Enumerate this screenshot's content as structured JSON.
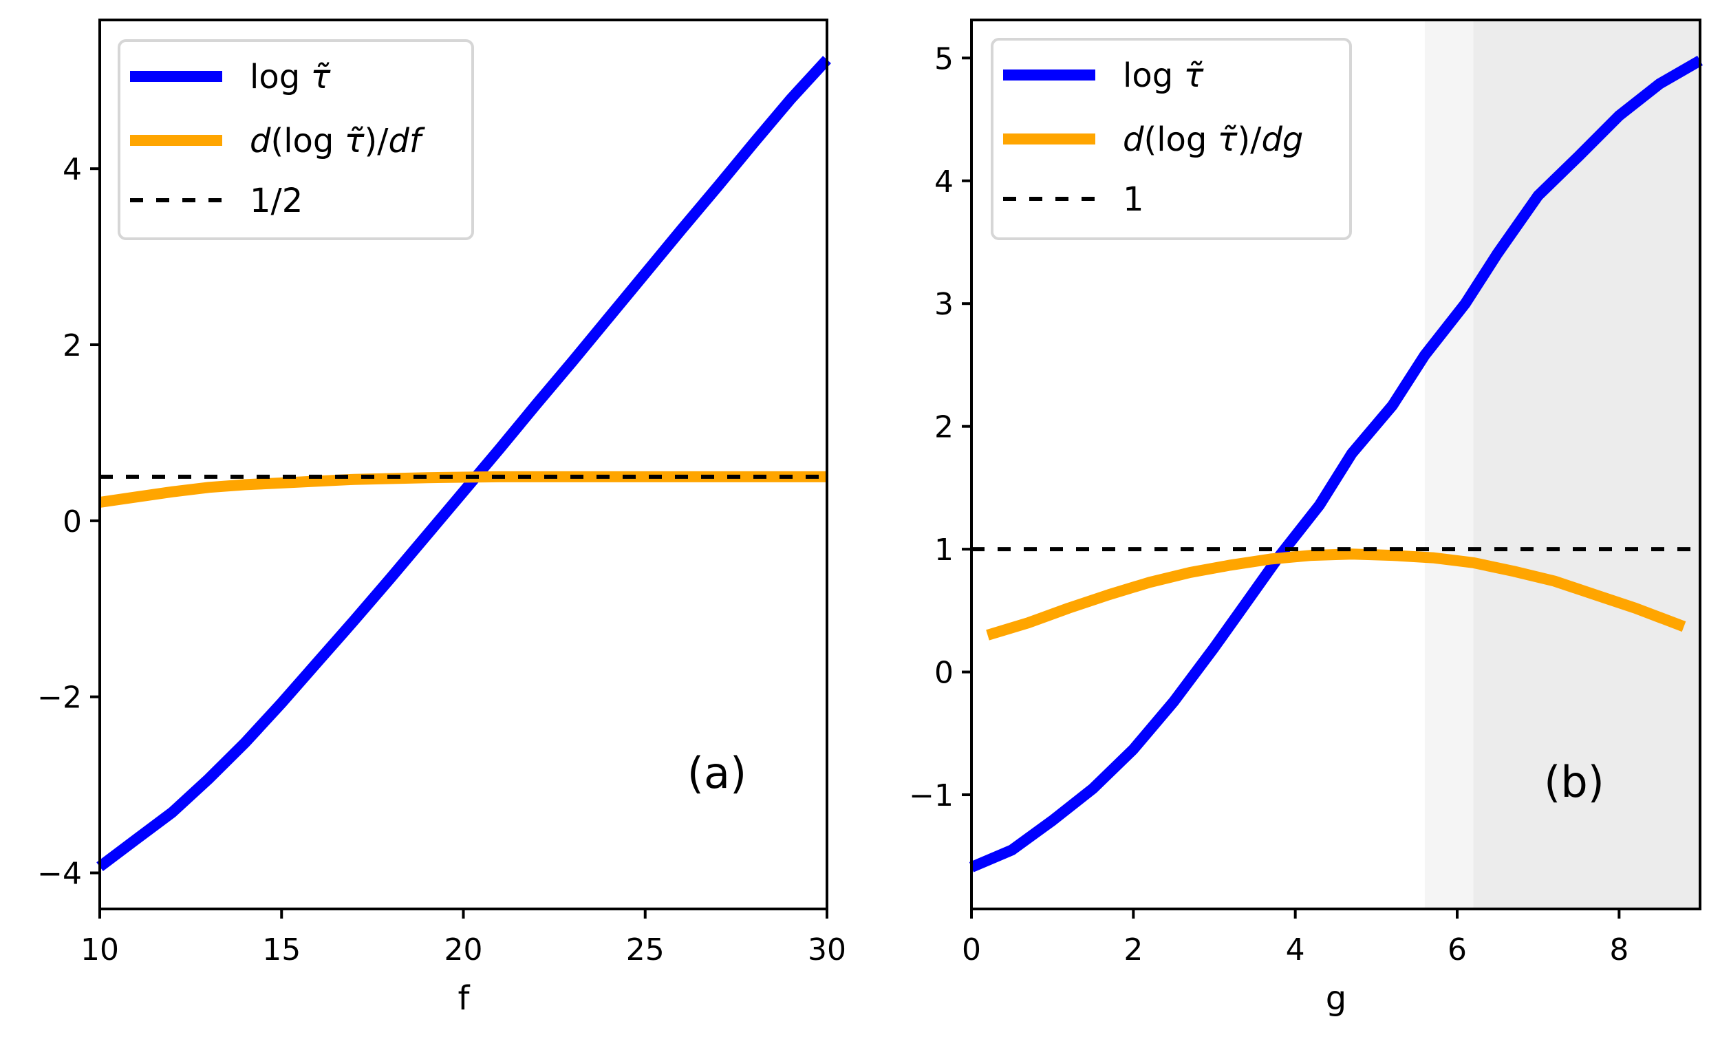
{
  "colors": {
    "blue": "#0000ff",
    "orange": "#ffa500",
    "ref": "#000000",
    "shade_light": "#f5f5f5",
    "shade_dark": "#ececec",
    "legend_border": "#d6d6d6"
  },
  "chart_data": [
    {
      "type": "line",
      "panel": "(a)",
      "xlabel": "f",
      "ylabel": "",
      "xlim": [
        10,
        30
      ],
      "ylim": [
        -4.41,
        5.69
      ],
      "xticks": [
        10,
        15,
        20,
        25,
        30
      ],
      "xtick_labels": [
        "10",
        "15",
        "20",
        "25",
        "30"
      ],
      "yticks": [
        -4,
        -2,
        0,
        2,
        4
      ],
      "ytick_labels": [
        "−4",
        "−2",
        "0",
        "2",
        "4"
      ],
      "grid": false,
      "legend_position": "upper left",
      "x": [
        10,
        11,
        12,
        13,
        14,
        15,
        16,
        17,
        18,
        19,
        20,
        21,
        22,
        23,
        24,
        25,
        26,
        27,
        28,
        29,
        30
      ],
      "series": [
        {
          "name": "log τ̃",
          "legend_main": "log ",
          "legend_sym": "τ̃",
          "color": "#0000ff",
          "style": "solid",
          "values": [
            -3.93,
            -3.62,
            -3.31,
            -2.93,
            -2.52,
            -2.07,
            -1.6,
            -1.13,
            -0.65,
            -0.16,
            0.33,
            0.82,
            1.32,
            1.81,
            2.31,
            2.81,
            3.31,
            3.8,
            4.3,
            4.79,
            5.24
          ]
        },
        {
          "name": "d(log τ̃)/df",
          "legend_pre": "d",
          "legend_main": "(log ",
          "legend_sym": "τ̃",
          "legend_post": ")/df",
          "color": "#ffa500",
          "style": "solid",
          "values": [
            0.21,
            0.27,
            0.33,
            0.38,
            0.41,
            0.43,
            0.45,
            0.47,
            0.48,
            0.49,
            0.495,
            0.5,
            0.5,
            0.5,
            0.5,
            0.5,
            0.5,
            0.5,
            0.5,
            0.5,
            0.5
          ]
        },
        {
          "name": "1/2",
          "legend_main": "1/2",
          "color": "#000000",
          "style": "dashed",
          "constant": 0.5
        }
      ],
      "annotations": [
        {
          "text": "(a)",
          "x": 27.1,
          "y": -2.97
        }
      ]
    },
    {
      "type": "line",
      "panel": "(b)",
      "xlabel": "g",
      "ylabel": "",
      "xlim": [
        0,
        9
      ],
      "ylim": [
        -1.93,
        5.31
      ],
      "xticks": [
        0,
        2,
        4,
        6,
        8
      ],
      "xtick_labels": [
        "0",
        "2",
        "4",
        "6",
        "8"
      ],
      "yticks": [
        -1,
        0,
        1,
        2,
        3,
        4,
        5
      ],
      "ytick_labels": [
        "−1",
        "0",
        "1",
        "2",
        "3",
        "4",
        "5"
      ],
      "grid": false,
      "legend_position": "upper left",
      "shaded_region": {
        "x0": 5.6,
        "x1": 9.0,
        "inner_x0": 6.2
      },
      "series": [
        {
          "name": "log τ̃",
          "legend_main": "log ",
          "legend_sym": "τ̃",
          "color": "#0000ff",
          "style": "solid",
          "x": [
            0,
            0.5,
            1.0,
            1.5,
            2.0,
            2.5,
            3.0,
            3.4,
            3.8,
            4.3,
            4.7,
            5.2,
            5.6,
            6.1,
            6.5,
            7.0,
            7.5,
            8.0,
            8.5,
            9.0
          ],
          "values": [
            -1.59,
            -1.45,
            -1.21,
            -0.95,
            -0.63,
            -0.24,
            0.2,
            0.57,
            0.94,
            1.36,
            1.78,
            2.17,
            2.58,
            3.0,
            3.41,
            3.88,
            4.2,
            4.53,
            4.79,
            4.98
          ]
        },
        {
          "name": "d(log τ̃)/dg",
          "legend_pre": "d",
          "legend_main": "(log ",
          "legend_sym": "τ̃",
          "legend_post": ")/dg",
          "color": "#ffa500",
          "style": "solid",
          "x": [
            0.2,
            0.7,
            1.2,
            1.7,
            2.2,
            2.7,
            3.2,
            3.7,
            4.2,
            4.7,
            5.2,
            5.7,
            6.2,
            6.7,
            7.2,
            7.7,
            8.2,
            8.8
          ],
          "values": [
            0.3,
            0.4,
            0.52,
            0.63,
            0.73,
            0.81,
            0.87,
            0.92,
            0.95,
            0.96,
            0.95,
            0.93,
            0.89,
            0.82,
            0.74,
            0.63,
            0.52,
            0.37
          ]
        },
        {
          "name": "1",
          "legend_main": "1",
          "color": "#000000",
          "style": "dashed",
          "constant": 1
        }
      ],
      "annotations": [
        {
          "text": "(b)",
          "x": 7.0,
          "y": -0.95
        }
      ]
    }
  ]
}
